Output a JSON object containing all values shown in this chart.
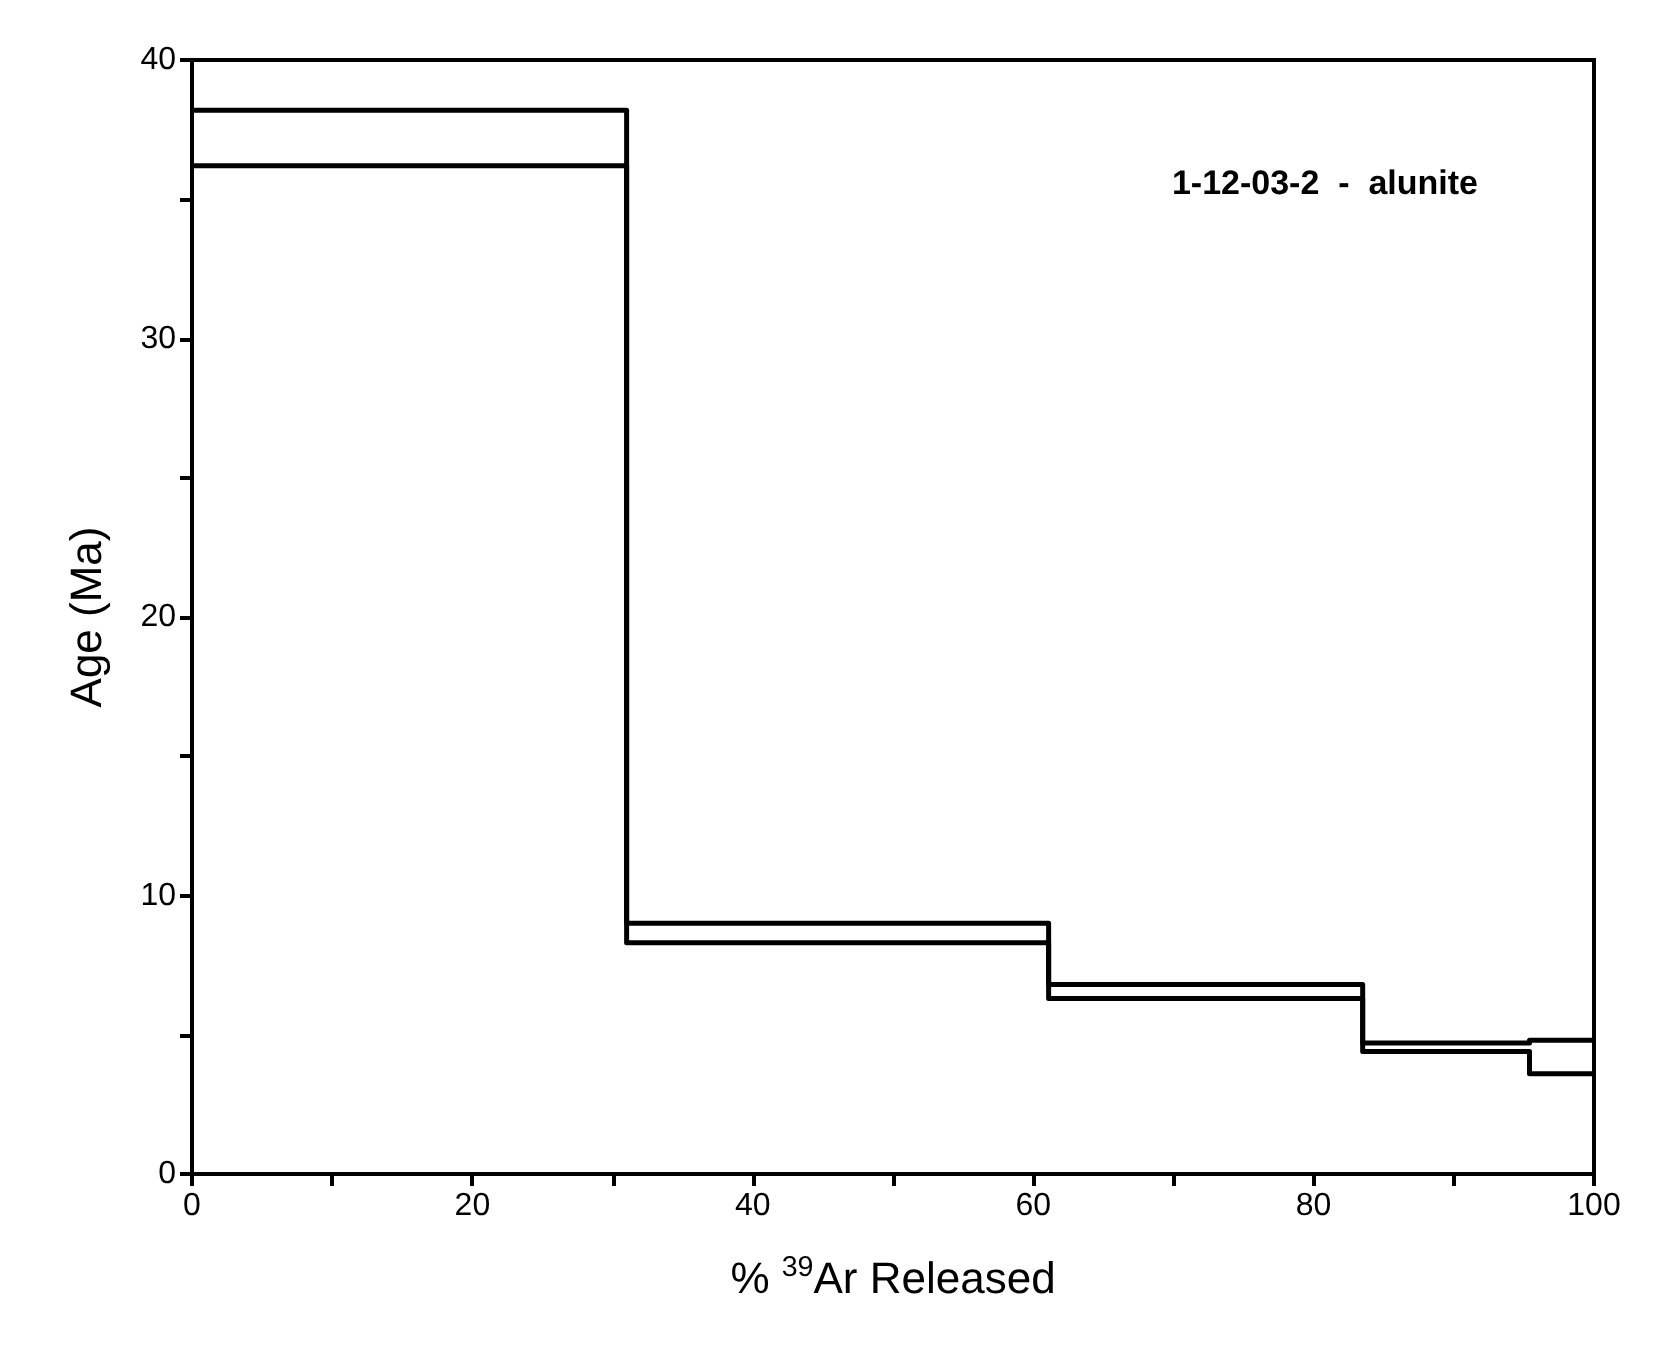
{
  "chart_data": {
    "type": "step",
    "xlabel": "% $^{39}$Ar Released",
    "ylabel": "Age (Ma)",
    "annotations": [
      "1-12-03-2  -  alunite"
    ],
    "x": [
      0,
      31,
      61.1,
      83.5,
      95.4,
      100
    ],
    "series": [
      {
        "color": "#000000",
        "values": [
          38.2,
          9.0,
          6.8,
          4.7,
          4.8,
          4.8
        ]
      },
      {
        "color": "#000000",
        "values": [
          36.2,
          8.3,
          6.3,
          4.4,
          3.6,
          3.6
        ]
      }
    ],
    "xlim": [
      0,
      100
    ],
    "ylim": [
      0,
      40
    ],
    "xticks": [
      0,
      {
        "value": 10,
        "label": null
      },
      20,
      {
        "value": 30,
        "label": null
      },
      40,
      {
        "value": 50,
        "label": null
      },
      60,
      {
        "value": 70,
        "label": null
      },
      80,
      {
        "value": 90,
        "label": null
      },
      100
    ],
    "yticks": [
      0,
      {
        "value": 5,
        "label": null
      },
      10,
      {
        "value": 15,
        "label": null
      },
      20,
      {
        "value": 25,
        "label": null
      },
      30,
      {
        "value": 35,
        "label": null
      },
      40
    ],
    "grid": false,
    "marker": "none",
    "line_style": "solid"
  }
}
